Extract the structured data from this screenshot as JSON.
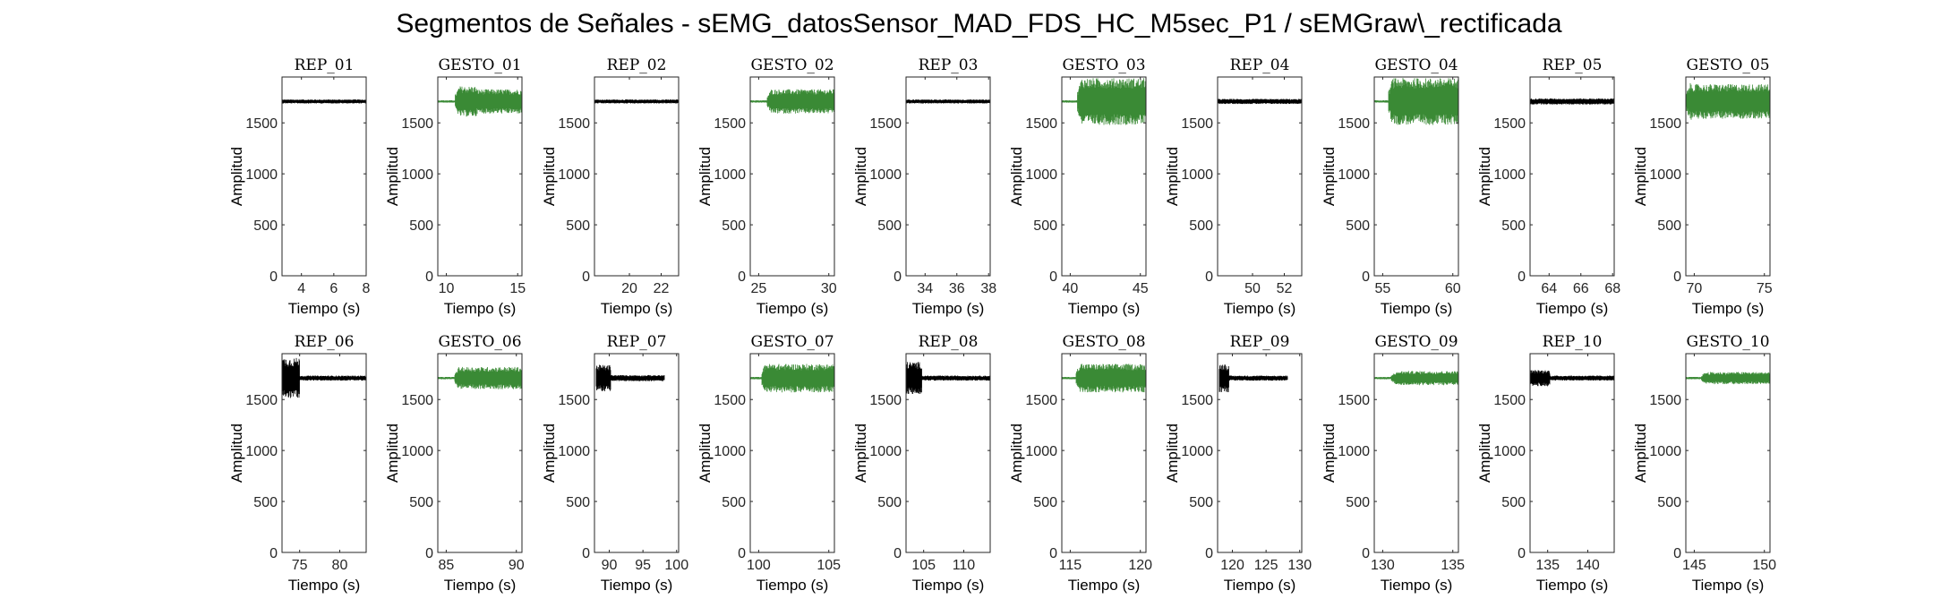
{
  "figure_title": "Segmentos de Señales - sEMG_datosSensor_MAD_FDS_HC_M5sec_P1 / sEMGraw\\_rectificada",
  "colors": {
    "rep": "#000000",
    "gesto": "#3a8a35",
    "axis": "#262626"
  },
  "chart_data": [
    {
      "type": "line",
      "title": "REP_01",
      "kind": "rep",
      "xlabel": "Tiempo (s)",
      "ylabel": "Amplitud",
      "xlim": [
        2.8,
        8
      ],
      "ylim": [
        0,
        1950
      ],
      "xticks": [
        4,
        6,
        8
      ],
      "yticks": [
        0,
        500,
        1000,
        1500
      ],
      "signal": {
        "baseline": 1710,
        "start": 2.8,
        "end": 8,
        "initial_half_range": 20,
        "initial_duration": 0,
        "steady_half_range": 20
      }
    },
    {
      "type": "line",
      "title": "GESTO_01",
      "kind": "gesto",
      "xlabel": "Tiempo (s)",
      "ylabel": "Amplitud",
      "xlim": [
        9.4,
        15.3
      ],
      "ylim": [
        0,
        1950
      ],
      "xticks": [
        10,
        15
      ],
      "yticks": [
        0,
        500,
        1000,
        1500
      ],
      "signal": {
        "baseline": 1710,
        "start": 9.4,
        "end": 15.3,
        "onset": 10.6,
        "initial_half_range": 150,
        "initial_duration": 1.5,
        "steady_half_range": 120
      }
    },
    {
      "type": "line",
      "title": "REP_02",
      "kind": "rep",
      "xlabel": "Tiempo (s)",
      "ylabel": "Amplitud",
      "xlim": [
        17.8,
        23.1
      ],
      "ylim": [
        0,
        1950
      ],
      "xticks": [
        20,
        22
      ],
      "yticks": [
        0,
        500,
        1000,
        1500
      ],
      "signal": {
        "baseline": 1710,
        "start": 17.8,
        "end": 23.1,
        "initial_half_range": 20,
        "initial_duration": 0,
        "steady_half_range": 20
      }
    },
    {
      "type": "line",
      "title": "GESTO_02",
      "kind": "gesto",
      "xlabel": "Tiempo (s)",
      "ylabel": "Amplitud",
      "xlim": [
        24.4,
        30.4
      ],
      "ylim": [
        0,
        1950
      ],
      "xticks": [
        25,
        30
      ],
      "yticks": [
        0,
        500,
        1000,
        1500
      ],
      "signal": {
        "baseline": 1710,
        "start": 24.4,
        "end": 30.4,
        "onset": 25.6,
        "initial_half_range": 120,
        "initial_duration": 0.5,
        "steady_half_range": 120
      }
    },
    {
      "type": "line",
      "title": "REP_03",
      "kind": "rep",
      "xlabel": "Tiempo (s)",
      "ylabel": "Amplitud",
      "xlim": [
        32.8,
        38.1
      ],
      "ylim": [
        0,
        1950
      ],
      "xticks": [
        34,
        36,
        38
      ],
      "yticks": [
        0,
        500,
        1000,
        1500
      ],
      "signal": {
        "baseline": 1710,
        "start": 32.8,
        "end": 38.1,
        "initial_half_range": 20,
        "initial_duration": 0,
        "steady_half_range": 20
      }
    },
    {
      "type": "line",
      "title": "GESTO_03",
      "kind": "gesto",
      "xlabel": "Tiempo (s)",
      "ylabel": "Amplitud",
      "xlim": [
        39.4,
        45.4
      ],
      "ylim": [
        0,
        1950
      ],
      "xticks": [
        40,
        45
      ],
      "yticks": [
        0,
        500,
        1000,
        1500
      ],
      "signal": {
        "baseline": 1710,
        "start": 39.4,
        "end": 45.4,
        "onset": 40.5,
        "initial_half_range": 230,
        "initial_duration": 0.5,
        "steady_half_range": 230
      }
    },
    {
      "type": "line",
      "title": "REP_04",
      "kind": "rep",
      "xlabel": "Tiempo (s)",
      "ylabel": "Amplitud",
      "xlim": [
        47.8,
        53.1
      ],
      "ylim": [
        0,
        1950
      ],
      "xticks": [
        50,
        52
      ],
      "yticks": [
        0,
        500,
        1000,
        1500
      ],
      "signal": {
        "baseline": 1710,
        "start": 47.8,
        "end": 53.1,
        "initial_half_range": 25,
        "initial_duration": 0,
        "steady_half_range": 25
      }
    },
    {
      "type": "line",
      "title": "GESTO_04",
      "kind": "gesto",
      "xlabel": "Tiempo (s)",
      "ylabel": "Amplitud",
      "xlim": [
        54.4,
        60.4
      ],
      "ylim": [
        0,
        1950
      ],
      "xticks": [
        55,
        60
      ],
      "yticks": [
        0,
        500,
        1000,
        1500
      ],
      "signal": {
        "baseline": 1710,
        "start": 54.4,
        "end": 60.4,
        "onset": 55.4,
        "initial_half_range": 230,
        "initial_duration": 0.5,
        "steady_half_range": 230
      }
    },
    {
      "type": "line",
      "title": "REP_05",
      "kind": "rep",
      "xlabel": "Tiempo (s)",
      "ylabel": "Amplitud",
      "xlim": [
        62.8,
        68.1
      ],
      "ylim": [
        0,
        1950
      ],
      "xticks": [
        64,
        66,
        68
      ],
      "yticks": [
        0,
        500,
        1000,
        1500
      ],
      "signal": {
        "baseline": 1710,
        "start": 62.8,
        "end": 68.1,
        "initial_half_range": 30,
        "initial_duration": 0,
        "steady_half_range": 30
      }
    },
    {
      "type": "line",
      "title": "GESTO_05",
      "kind": "gesto",
      "xlabel": "Tiempo (s)",
      "ylabel": "Amplitud",
      "xlim": [
        69.4,
        75.4
      ],
      "ylim": [
        0,
        1950
      ],
      "xticks": [
        70,
        75
      ],
      "yticks": [
        0,
        500,
        1000,
        1500
      ],
      "signal": {
        "baseline": 1710,
        "start": 69.4,
        "end": 75.4,
        "onset": 69.4,
        "initial_half_range": 180,
        "initial_duration": 0.4,
        "steady_half_range": 170
      }
    },
    {
      "type": "line",
      "title": "REP_06",
      "kind": "rep",
      "xlabel": "Tiempo (s)",
      "ylabel": "Amplitud",
      "xlim": [
        72.8,
        83.3
      ],
      "ylim": [
        0,
        1950
      ],
      "xticks": [
        75,
        80
      ],
      "yticks": [
        0,
        500,
        1000,
        1500
      ],
      "signal": {
        "baseline": 1710,
        "start": 72.8,
        "end": 83.3,
        "initial_half_range": 200,
        "initial_duration": 2.2,
        "steady_half_range": 25
      }
    },
    {
      "type": "line",
      "title": "GESTO_06",
      "kind": "gesto",
      "xlabel": "Tiempo (s)",
      "ylabel": "Amplitud",
      "xlim": [
        84.4,
        90.4
      ],
      "ylim": [
        0,
        1950
      ],
      "xticks": [
        85,
        90
      ],
      "yticks": [
        0,
        500,
        1000,
        1500
      ],
      "signal": {
        "baseline": 1710,
        "start": 84.4,
        "end": 90.4,
        "onset": 85.6,
        "initial_half_range": 110,
        "initial_duration": 0.5,
        "steady_half_range": 110
      }
    },
    {
      "type": "line",
      "title": "REP_07",
      "kind": "rep",
      "xlabel": "Tiempo (s)",
      "ylabel": "Amplitud",
      "xlim": [
        87.8,
        100.3
      ],
      "ylim": [
        0,
        1950
      ],
      "xticks": [
        90,
        95,
        100
      ],
      "yticks": [
        0,
        500,
        1000,
        1500
      ],
      "signal": {
        "baseline": 1710,
        "start": 88.0,
        "end": 98.3,
        "initial_half_range": 130,
        "initial_duration": 2.2,
        "steady_half_range": 30
      }
    },
    {
      "type": "line",
      "title": "GESTO_07",
      "kind": "gesto",
      "xlabel": "Tiempo (s)",
      "ylabel": "Amplitud",
      "xlim": [
        99.4,
        105.4
      ],
      "ylim": [
        0,
        1950
      ],
      "xticks": [
        100,
        105
      ],
      "yticks": [
        0,
        500,
        1000,
        1500
      ],
      "signal": {
        "baseline": 1710,
        "start": 99.4,
        "end": 105.4,
        "onset": 100.2,
        "initial_half_range": 150,
        "initial_duration": 0.5,
        "steady_half_range": 140
      }
    },
    {
      "type": "line",
      "title": "REP_08",
      "kind": "rep",
      "xlabel": "Tiempo (s)",
      "ylabel": "Amplitud",
      "xlim": [
        102.8,
        113.3
      ],
      "ylim": [
        0,
        1950
      ],
      "xticks": [
        105,
        110
      ],
      "yticks": [
        0,
        500,
        1000,
        1500
      ],
      "signal": {
        "baseline": 1710,
        "start": 102.8,
        "end": 113.3,
        "initial_half_range": 160,
        "initial_duration": 2.0,
        "steady_half_range": 25
      }
    },
    {
      "type": "line",
      "title": "GESTO_08",
      "kind": "gesto",
      "xlabel": "Tiempo (s)",
      "ylabel": "Amplitud",
      "xlim": [
        114.4,
        120.4
      ],
      "ylim": [
        0,
        1950
      ],
      "xticks": [
        115,
        120
      ],
      "yticks": [
        0,
        500,
        1000,
        1500
      ],
      "signal": {
        "baseline": 1710,
        "start": 114.4,
        "end": 120.4,
        "onset": 115.4,
        "initial_half_range": 150,
        "initial_duration": 0.5,
        "steady_half_range": 140
      }
    },
    {
      "type": "line",
      "title": "REP_09",
      "kind": "rep",
      "xlabel": "Tiempo (s)",
      "ylabel": "Amplitud",
      "xlim": [
        117.8,
        130.3
      ],
      "ylim": [
        0,
        1950
      ],
      "xticks": [
        120,
        125,
        130
      ],
      "yticks": [
        0,
        500,
        1000,
        1500
      ],
      "signal": {
        "baseline": 1710,
        "start": 118.0,
        "end": 128.3,
        "initial_half_range": 140,
        "initial_duration": 1.5,
        "steady_half_range": 25
      }
    },
    {
      "type": "line",
      "title": "GESTO_09",
      "kind": "gesto",
      "xlabel": "Tiempo (s)",
      "ylabel": "Amplitud",
      "xlim": [
        129.4,
        135.4
      ],
      "ylim": [
        0,
        1950
      ],
      "xticks": [
        130,
        135
      ],
      "yticks": [
        0,
        500,
        1000,
        1500
      ],
      "signal": {
        "baseline": 1710,
        "start": 129.4,
        "end": 135.4,
        "onset": 130.6,
        "initial_half_range": 60,
        "initial_duration": 0.5,
        "steady_half_range": 70
      }
    },
    {
      "type": "line",
      "title": "REP_10",
      "kind": "rep",
      "xlabel": "Tiempo (s)",
      "ylabel": "Amplitud",
      "xlim": [
        132.8,
        143.3
      ],
      "ylim": [
        0,
        1950
      ],
      "xticks": [
        135,
        140
      ],
      "yticks": [
        0,
        500,
        1000,
        1500
      ],
      "signal": {
        "baseline": 1710,
        "start": 132.8,
        "end": 143.3,
        "initial_half_range": 80,
        "initial_duration": 2.5,
        "steady_half_range": 25
      }
    },
    {
      "type": "line",
      "title": "GESTO_10",
      "kind": "gesto",
      "xlabel": "Tiempo (s)",
      "ylabel": "Amplitud",
      "xlim": [
        144.4,
        150.4
      ],
      "ylim": [
        0,
        1950
      ],
      "xticks": [
        145,
        150
      ],
      "yticks": [
        0,
        500,
        1000,
        1500
      ],
      "signal": {
        "baseline": 1710,
        "start": 144.4,
        "end": 150.4,
        "onset": 145.5,
        "initial_half_range": 60,
        "initial_duration": 0.5,
        "steady_half_range": 60
      }
    }
  ]
}
